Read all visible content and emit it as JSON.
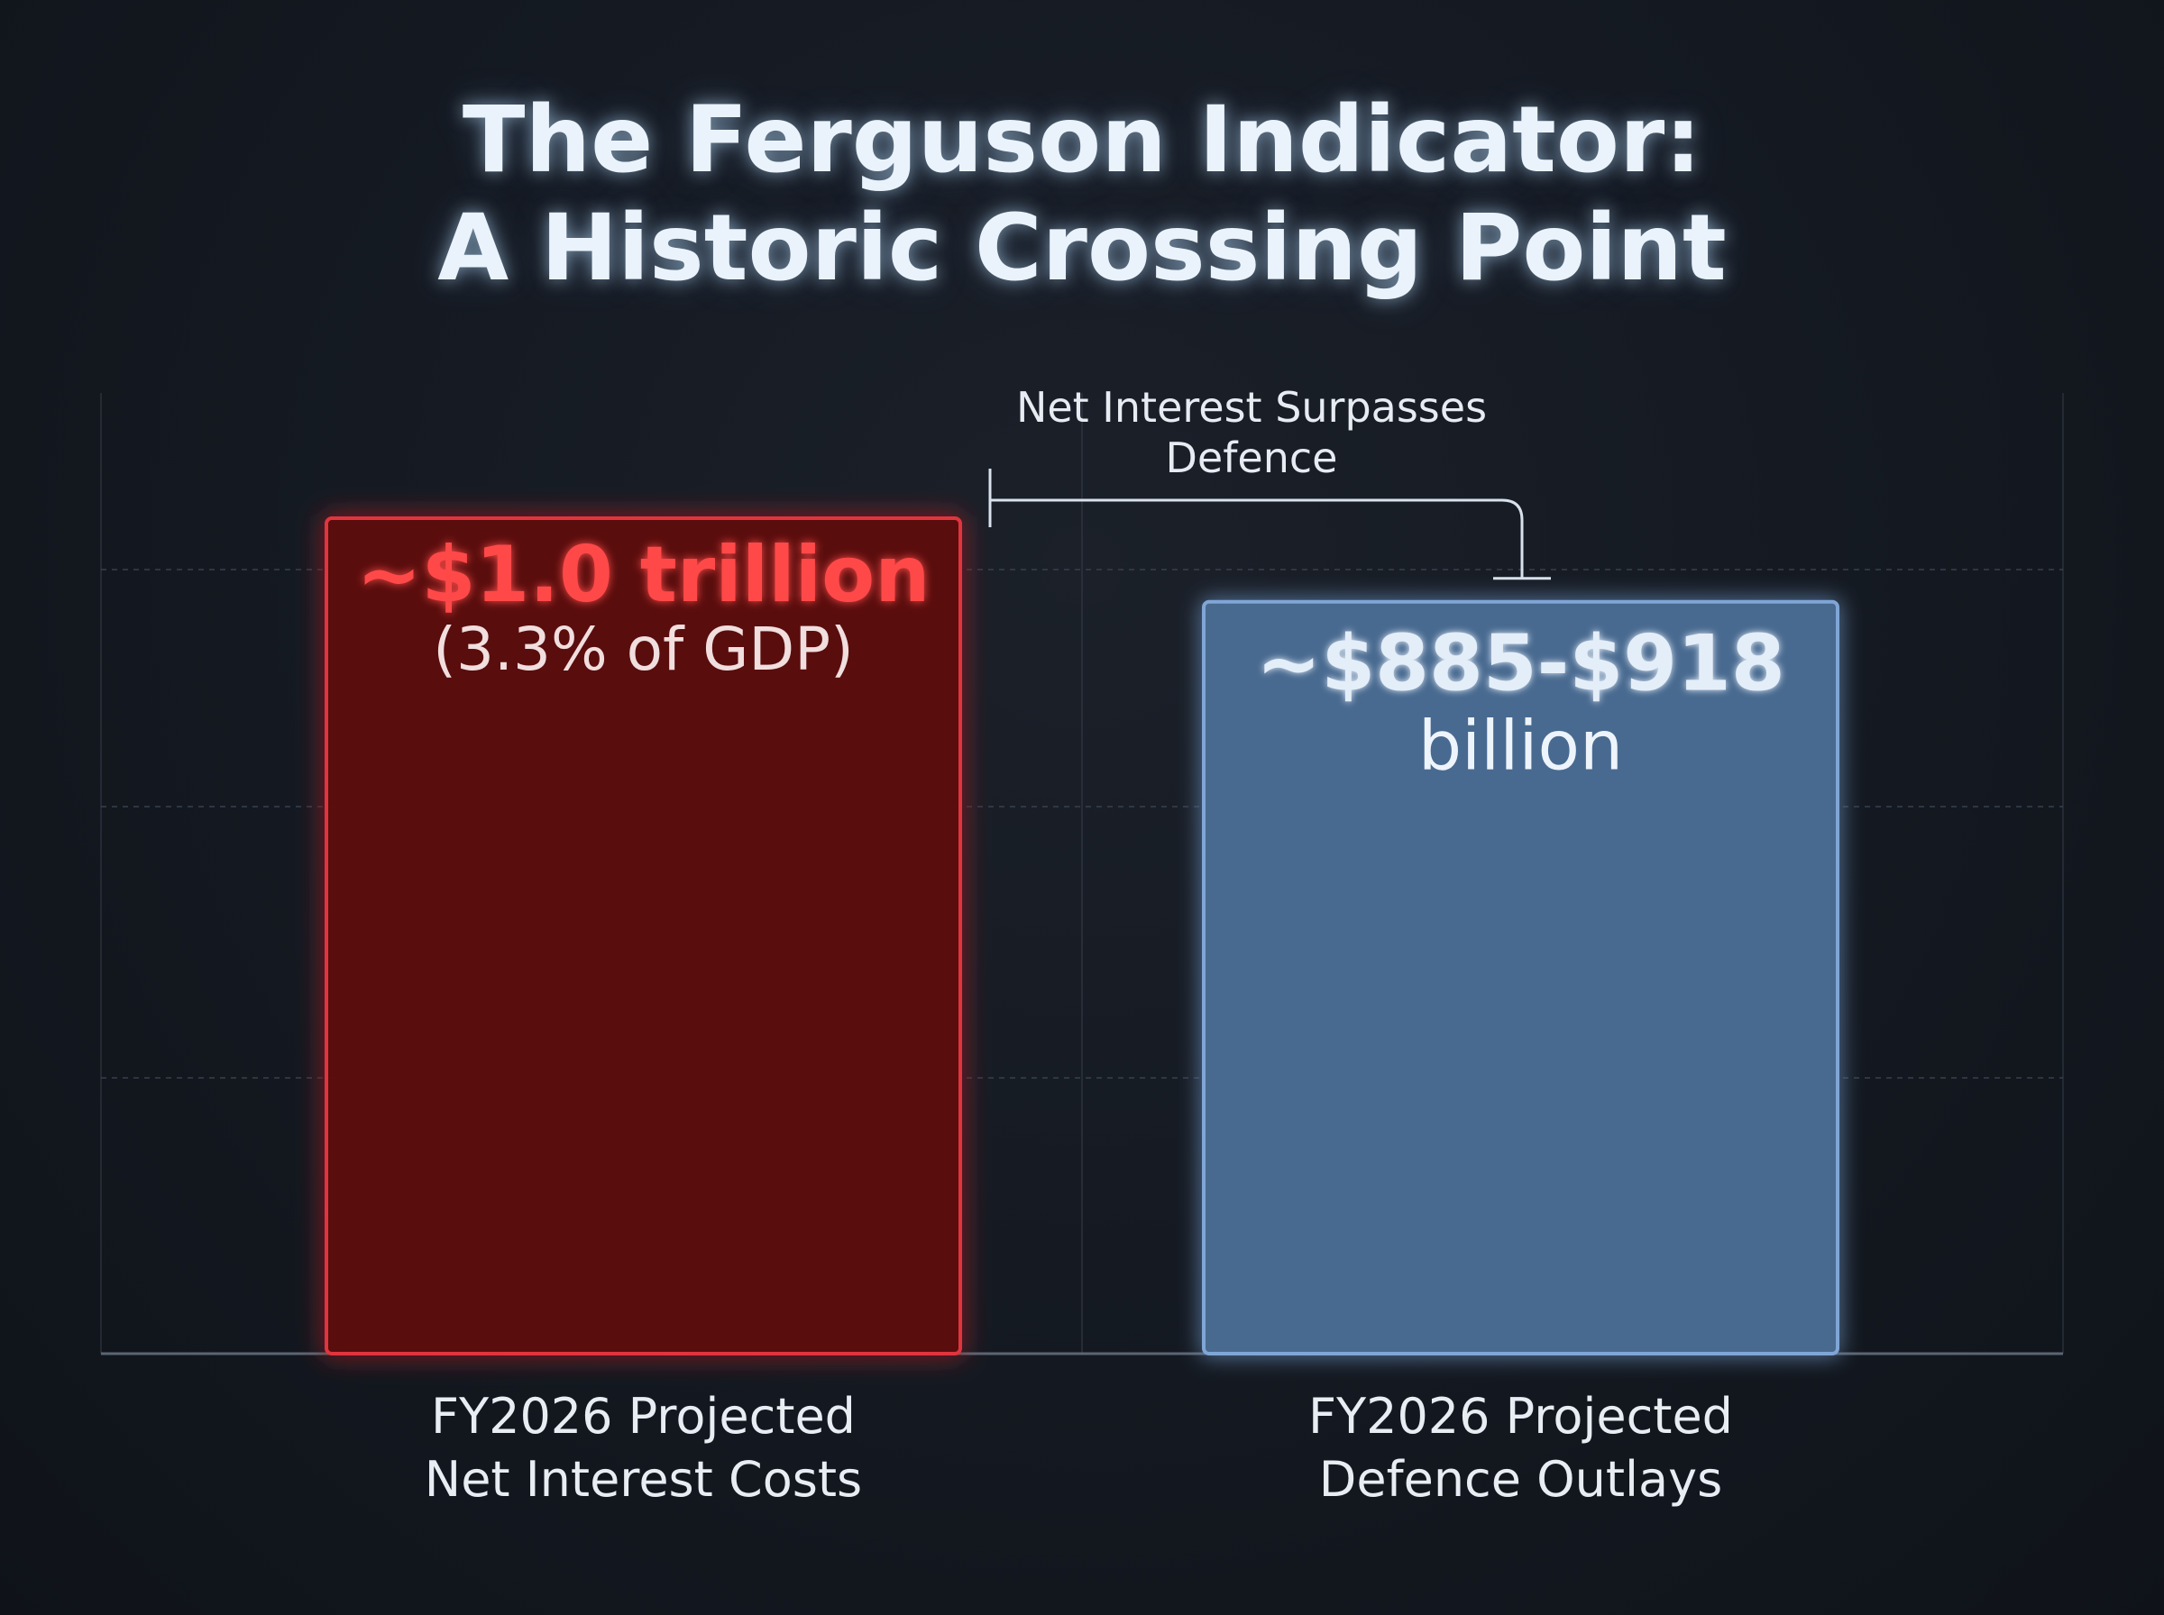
{
  "title": {
    "line1": "The Ferguson Indicator:",
    "line2": "A Historic Crossing Point"
  },
  "colors": {
    "background": "#141921",
    "interest_bar_fill": "#5a0a0f",
    "interest_bar_stroke": "#e0363c",
    "interest_value_text": "#ff4a4a",
    "defence_bar_fill": "#4a6a90",
    "defence_bar_stroke": "#7fa6d6",
    "defence_value_text": "#e4eef9",
    "grid": "#3a4350",
    "axis": "#5b6573",
    "annotation_line": "#d9e2ec"
  },
  "chart_data": {
    "type": "bar",
    "title": "The Ferguson Indicator: A Historic Crossing Point",
    "categories": [
      [
        "FY2026 Projected",
        "Net Interest Costs"
      ],
      [
        "FY2026 Projected",
        "Defence Outlays"
      ]
    ],
    "values": [
      1000,
      900
    ],
    "value_unit": "billion USD",
    "ylim": [
      0,
      1150
    ],
    "grid": true,
    "data_labels": [
      {
        "main": "~$1.0 trillion",
        "sub": "(3.3% of GDP)"
      },
      {
        "main": "~$885-$918",
        "sub": "billion"
      }
    ],
    "annotation": {
      "text": [
        "Net Interest Surpasses",
        "Defence"
      ]
    }
  }
}
